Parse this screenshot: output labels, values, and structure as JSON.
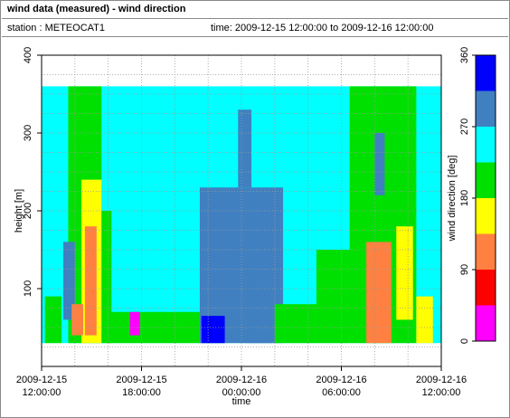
{
  "title": "wind data (measured) - wind direction",
  "station_text": "station : METEOCAT1",
  "time_text": "time: 2009-12-15 12:00:00 to 2009-12-16 12:00:00",
  "chart_data": {
    "type": "heatmap",
    "xlabel": "time",
    "ylabel": "height [m]",
    "colorbar_label": "wind direction [deg]",
    "x_ticks": [
      {
        "hours": 0,
        "line1": "2009-12-15",
        "line2": "12:00:00"
      },
      {
        "hours": 6,
        "line1": "2009-12-15",
        "line2": "18:00:00"
      },
      {
        "hours": 12,
        "line1": "2009-12-16",
        "line2": "00:00:00"
      },
      {
        "hours": 18,
        "line1": "2009-12-16",
        "line2": "06:00:00"
      },
      {
        "hours": 24,
        "line1": "2009-12-16",
        "line2": "12:00:00"
      }
    ],
    "y_range": [
      0,
      400
    ],
    "y_ticks": [
      100,
      200,
      300,
      400
    ],
    "color_range": [
      0,
      360
    ],
    "color_ticks": [
      0,
      90,
      180,
      270,
      360
    ],
    "color_classes": [
      {
        "from": 0,
        "to": 45,
        "color": "#ff00ff"
      },
      {
        "from": 45,
        "to": 90,
        "color": "#ff0000"
      },
      {
        "from": 90,
        "to": 135,
        "color": "#ff8040"
      },
      {
        "from": 135,
        "to": 180,
        "color": "#ffff00"
      },
      {
        "from": 180,
        "to": 225,
        "color": "#00e000"
      },
      {
        "from": 225,
        "to": 270,
        "color": "#00ffff"
      },
      {
        "from": 270,
        "to": 315,
        "color": "#4080c0"
      },
      {
        "from": 315,
        "to": 360,
        "color": "#0000ff"
      }
    ],
    "grid": true,
    "regions": [
      {
        "t0": 0.0,
        "t1": 24.0,
        "h0": 30,
        "h1": 360,
        "cls": 5
      },
      {
        "t0": 1.6,
        "t1": 3.6,
        "h0": 30,
        "h1": 360,
        "cls": 4
      },
      {
        "t0": 2.4,
        "t1": 3.6,
        "h0": 30,
        "h1": 240,
        "cls": 3
      },
      {
        "t0": 2.6,
        "t1": 3.3,
        "h0": 40,
        "h1": 180,
        "cls": 2
      },
      {
        "t0": 3.6,
        "t1": 4.2,
        "h0": 30,
        "h1": 200,
        "cls": 4
      },
      {
        "t0": 1.3,
        "t1": 2.0,
        "h0": 60,
        "h1": 160,
        "cls": 6
      },
      {
        "t0": 1.8,
        "t1": 2.5,
        "h0": 40,
        "h1": 80,
        "cls": 2
      },
      {
        "t0": 0.2,
        "t1": 1.2,
        "h0": 30,
        "h1": 90,
        "cls": 4
      },
      {
        "t0": 4.0,
        "t1": 11.0,
        "h0": 30,
        "h1": 70,
        "cls": 4
      },
      {
        "t0": 9.5,
        "t1": 14.5,
        "h0": 30,
        "h1": 230,
        "cls": 6
      },
      {
        "t0": 11.8,
        "t1": 12.6,
        "h0": 230,
        "h1": 330,
        "cls": 6
      },
      {
        "t0": 12.2,
        "t1": 13.8,
        "h0": 30,
        "h1": 120,
        "cls": 6
      },
      {
        "t0": 9.6,
        "t1": 11.0,
        "h0": 30,
        "h1": 65,
        "cls": 7
      },
      {
        "t0": 14.0,
        "t1": 18.5,
        "h0": 30,
        "h1": 80,
        "cls": 4
      },
      {
        "t0": 16.5,
        "t1": 19.0,
        "h0": 40,
        "h1": 150,
        "cls": 4
      },
      {
        "t0": 18.5,
        "t1": 22.5,
        "h0": 30,
        "h1": 360,
        "cls": 4
      },
      {
        "t0": 19.5,
        "t1": 21.0,
        "h0": 30,
        "h1": 160,
        "cls": 2
      },
      {
        "t0": 21.3,
        "t1": 22.3,
        "h0": 60,
        "h1": 180,
        "cls": 3
      },
      {
        "t0": 22.5,
        "t1": 23.5,
        "h0": 30,
        "h1": 90,
        "cls": 3
      },
      {
        "t0": 20.0,
        "t1": 20.6,
        "h0": 220,
        "h1": 300,
        "cls": 6
      },
      {
        "t0": 5.3,
        "t1": 5.9,
        "h0": 40,
        "h1": 70,
        "cls": 0
      }
    ]
  }
}
